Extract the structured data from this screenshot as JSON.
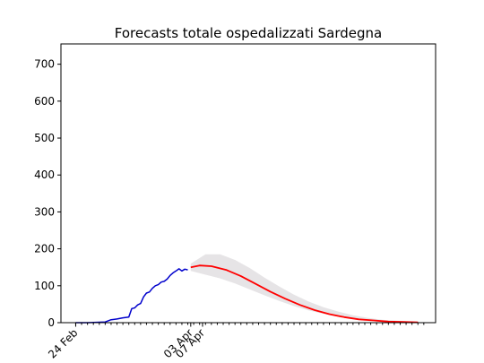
{
  "chart_data": {
    "type": "line",
    "title": "Forecasts totale ospedalizzati Sardegna",
    "xlabel": "",
    "ylabel": "",
    "ylim": [
      0,
      755
    ],
    "xlim": [
      "2020-02-19",
      "2020-06-25"
    ],
    "grid": false,
    "y_ticks": [
      0,
      100,
      200,
      300,
      400,
      500,
      600,
      700
    ],
    "x_tick_labels": [
      {
        "date": "2020-02-24",
        "label": "24 Feb"
      },
      {
        "date": "2020-04-03",
        "label": "03 Apr"
      },
      {
        "date": "2020-04-07",
        "label": "07 Apr"
      }
    ],
    "minor_ticks": {
      "start": "2020-02-24",
      "end": "2020-06-21",
      "step_days": 2
    },
    "colors": {
      "observed": "#0000cc",
      "forecast": "#ff0000",
      "band": "#e6e4e6"
    },
    "series": [
      {
        "role": "observed",
        "x": [
          "2020-02-24",
          "2020-02-28",
          "2020-03-02",
          "2020-03-05",
          "2020-03-07",
          "2020-03-09",
          "2020-03-11",
          "2020-03-13",
          "2020-03-14",
          "2020-03-15",
          "2020-03-16",
          "2020-03-17",
          "2020-03-18",
          "2020-03-19",
          "2020-03-20",
          "2020-03-21",
          "2020-03-22",
          "2020-03-23",
          "2020-03-24",
          "2020-03-25",
          "2020-03-26",
          "2020-03-27",
          "2020-03-28",
          "2020-03-29",
          "2020-03-30",
          "2020-03-31",
          "2020-04-01",
          "2020-04-02"
        ],
        "y": [
          0,
          0,
          1,
          2,
          8,
          10,
          13,
          15,
          38,
          40,
          48,
          52,
          70,
          80,
          83,
          93,
          100,
          103,
          110,
          112,
          118,
          128,
          135,
          140,
          146,
          140,
          145,
          143
        ]
      },
      {
        "role": "forecast",
        "x": [
          "2020-04-03",
          "2020-04-06",
          "2020-04-10",
          "2020-04-15",
          "2020-04-20",
          "2020-04-25",
          "2020-04-30",
          "2020-05-05",
          "2020-05-10",
          "2020-05-15",
          "2020-05-20",
          "2020-05-25",
          "2020-05-30",
          "2020-06-04",
          "2020-06-09",
          "2020-06-14",
          "2020-06-19"
        ],
        "y": [
          150,
          155,
          153,
          143,
          126,
          105,
          84,
          65,
          48,
          34,
          23,
          15,
          9,
          6,
          3,
          2,
          1
        ]
      },
      {
        "role": "band",
        "x": [
          "2020-04-03",
          "2020-04-08",
          "2020-04-13",
          "2020-04-18",
          "2020-04-23",
          "2020-04-28",
          "2020-05-03",
          "2020-05-08",
          "2020-05-13",
          "2020-05-18",
          "2020-05-23",
          "2020-05-28",
          "2020-06-02",
          "2020-06-07",
          "2020-06-12",
          "2020-06-19"
        ],
        "upper": [
          160,
          185,
          185,
          170,
          148,
          122,
          98,
          76,
          57,
          42,
          30,
          20,
          13,
          8,
          5,
          2
        ],
        "lower": [
          140,
          130,
          120,
          106,
          90,
          74,
          59,
          45,
          33,
          24,
          16,
          11,
          7,
          4,
          2,
          1
        ]
      }
    ]
  }
}
